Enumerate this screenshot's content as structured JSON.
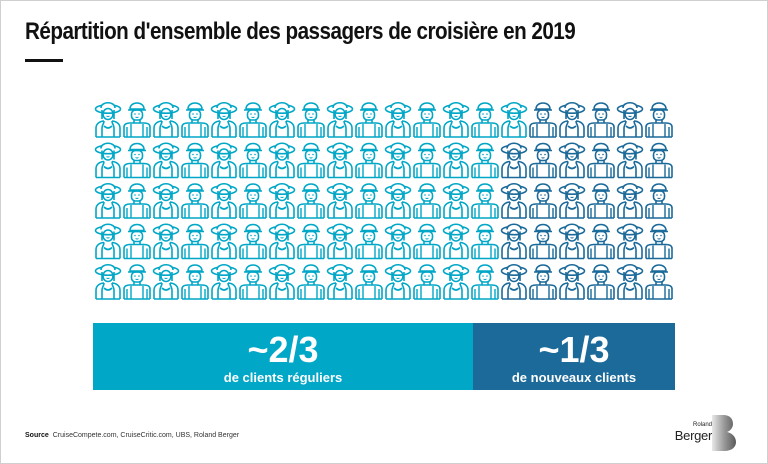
{
  "title": "Répartition d'ensemble des passagers de croisière en 2019",
  "colors": {
    "regular": "#00a7c7",
    "new": "#1b6a9a",
    "title_rule": "#111111"
  },
  "chart_data": {
    "type": "pictogram",
    "title": "Répartition d'ensemble des passagers de croisière en 2019",
    "grid": {
      "rows": 5,
      "columns": 20,
      "total_icons": 100
    },
    "icon_pattern": [
      "woman-with-sun-hat",
      "man-with-cap-and-backpack"
    ],
    "rows_regular_count": [
      15,
      14,
      14,
      14,
      14
    ],
    "rows_new_count": [
      5,
      6,
      6,
      6,
      6
    ],
    "categories": [
      "de clients réguliers",
      "de nouveaux clients"
    ],
    "values": [
      71,
      29
    ],
    "labels": [
      "~2/3",
      "~1/3"
    ],
    "series": [
      {
        "name": "Clients réguliers",
        "label": "~2/3",
        "share": "2/3",
        "color": "#00a7c7"
      },
      {
        "name": "Nouveaux clients",
        "label": "~1/3",
        "share": "1/3",
        "color": "#1b6a9a"
      }
    ]
  },
  "bars": {
    "regular": {
      "value": "~2/3",
      "caption": "de clients réguliers"
    },
    "new": {
      "value": "~1/3",
      "caption": "de nouveaux clients"
    }
  },
  "footer": {
    "source_label": "Source",
    "source_text": "CruiseCompete.com, CruiseCritic.com, UBS, Roland Berger"
  },
  "logo": {
    "line1": "Roland",
    "line2": "Berger",
    "icon": "roland-berger-b-logo"
  }
}
